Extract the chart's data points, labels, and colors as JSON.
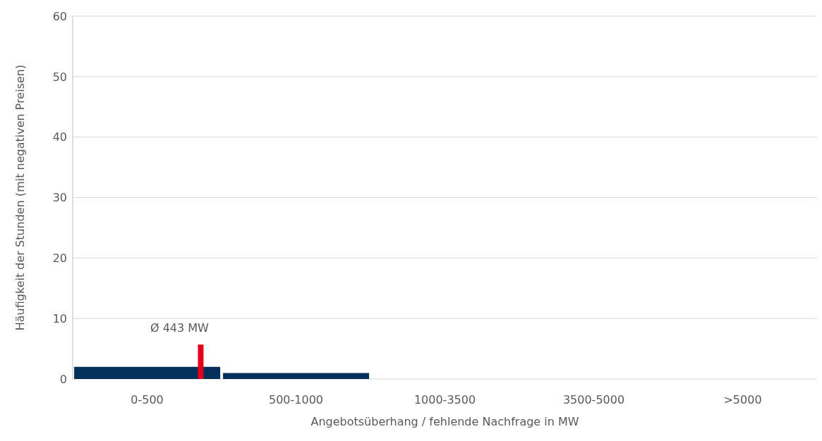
{
  "chart_data": {
    "type": "bar",
    "xlabel": "Angebotsüberhang / fehlende Nachfrage in MW",
    "ylabel": "Häufigkeit der Stunden (mit negativen Preisen)",
    "categories": [
      "0-500",
      "500-1000",
      "1000-3500",
      "3500-5000",
      ">5000"
    ],
    "values": [
      2,
      1,
      0,
      0,
      0
    ],
    "color": "#002f5a",
    "ylim": [
      0,
      60
    ],
    "yticks": [
      0,
      10,
      20,
      30,
      40,
      50,
      60
    ],
    "grid": "y",
    "annotations": [
      "Ø 443 MW"
    ]
  }
}
